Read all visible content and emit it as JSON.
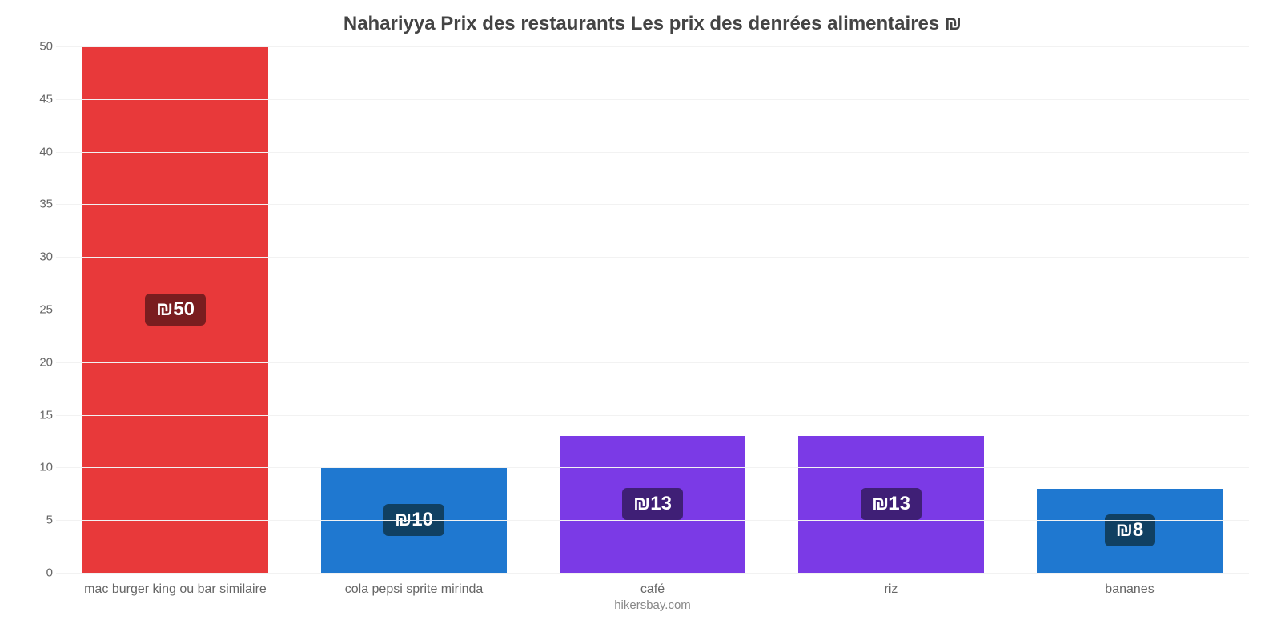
{
  "chart": {
    "type": "bar",
    "title": "Nahariyya Prix des restaurants Les prix des denrées alimentaires ₪",
    "title_fontsize": 24,
    "title_color": "#444444",
    "attribution": "hikersbay.com",
    "attribution_fontsize": 15,
    "attribution_color": "#888888",
    "background_color": "#ffffff",
    "grid_color": "#f2f2f2",
    "axis_color": "#666666",
    "tick_fontsize": 15,
    "tick_color": "#666666",
    "xlabel_fontsize": 16,
    "xlabel_color": "#666666",
    "badge_fontsize": 24,
    "ylim": [
      0,
      50
    ],
    "ytick_step": 5,
    "yticks": [
      0,
      5,
      10,
      15,
      20,
      25,
      30,
      35,
      40,
      45,
      50
    ],
    "bar_width": 0.78,
    "categories": [
      "mac burger king ou bar similaire",
      "cola pepsi sprite mirinda",
      "café",
      "riz",
      "bananes"
    ],
    "values": [
      50,
      10,
      13,
      13,
      8
    ],
    "value_labels": [
      "₪50",
      "₪10",
      "₪13",
      "₪13",
      "₪8"
    ],
    "bar_colors": [
      "#e8393a",
      "#1f78d0",
      "#7b3ae6",
      "#7b3ae6",
      "#1f78d0"
    ],
    "badge_bg_colors": [
      "#7a1d1f",
      "#104062",
      "#3f1f76",
      "#3f1f76",
      "#104062"
    ]
  }
}
